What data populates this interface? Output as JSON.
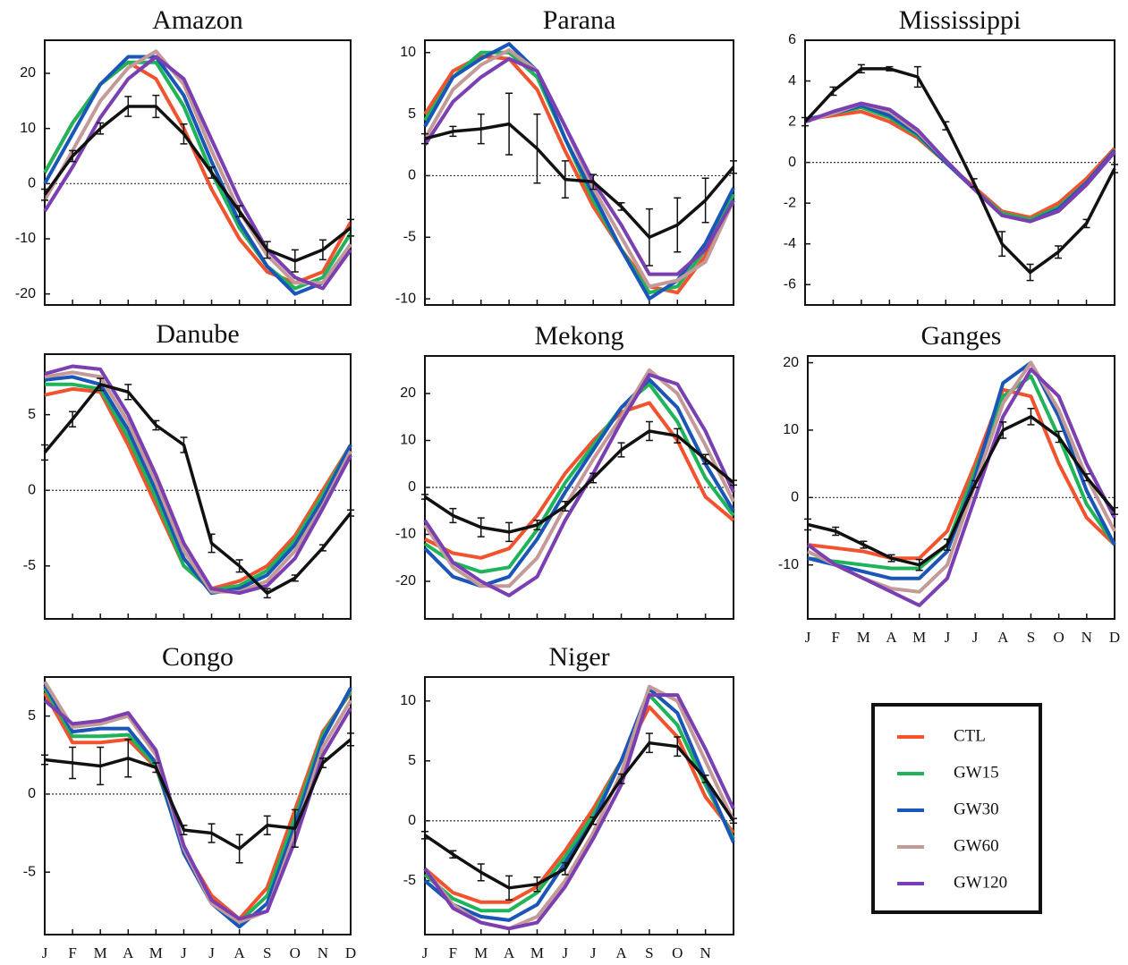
{
  "chart_data": [
    {
      "type": "line",
      "title": "Amazon",
      "categories": [
        null,
        null,
        null,
        null,
        null,
        null,
        null,
        null,
        null,
        null,
        null,
        null
      ],
      "ylim": [
        -22,
        26
      ],
      "yticks": [
        -20,
        -10,
        0,
        10,
        20
      ],
      "series": [
        {
          "values": [
            2,
            11,
            18,
            22,
            19,
            10,
            -1,
            -10,
            -16,
            -18,
            -16,
            -7
          ]
        },
        {
          "values": [
            2,
            11,
            18,
            22,
            22,
            14,
            2,
            -8,
            -15,
            -19,
            -17,
            -9
          ]
        },
        {
          "values": [
            0,
            9,
            18,
            23,
            23,
            16,
            4,
            -7,
            -15,
            -20,
            -18,
            -11
          ]
        },
        {
          "values": [
            -3,
            6,
            15,
            21,
            24,
            18,
            6,
            -5,
            -13,
            -18,
            -18,
            -11
          ]
        },
        {
          "values": [
            -5,
            3,
            12,
            19,
            23,
            19,
            8,
            -3,
            -12,
            -17,
            -19,
            -12
          ]
        }
      ],
      "observed": {
        "values": [
          -2,
          5,
          10,
          14,
          14,
          9,
          2,
          -5,
          -12,
          -14,
          -12,
          -8
        ],
        "errors": [
          1,
          1,
          1,
          1.8,
          2,
          1.8,
          1,
          1,
          1.5,
          2,
          1.8,
          1.5
        ]
      }
    },
    {
      "type": "line",
      "title": "Parana",
      "categories": [
        null,
        null,
        null,
        null,
        null,
        null,
        null,
        null,
        null,
        null,
        null,
        null
      ],
      "ylim": [
        -10.5,
        11
      ],
      "yticks": [
        -10,
        -5,
        0,
        5,
        10
      ],
      "series": [
        {
          "values": [
            5,
            8.5,
            9.7,
            9.5,
            7,
            2,
            -2.5,
            -6,
            -9,
            -9.5,
            -6.5,
            -2
          ]
        },
        {
          "values": [
            4.5,
            8,
            10,
            10,
            8,
            3,
            -2,
            -6,
            -9.5,
            -9,
            -6,
            -1.5
          ]
        },
        {
          "values": [
            4,
            8,
            9.5,
            10.7,
            8.5,
            3,
            -1.5,
            -6,
            -10,
            -8.5,
            -5.5,
            -1
          ]
        },
        {
          "values": [
            3,
            7,
            9,
            10.2,
            8.5,
            4,
            -1,
            -5,
            -9,
            -8.5,
            -7,
            -2
          ]
        },
        {
          "values": [
            2.5,
            6,
            8,
            9.5,
            8.5,
            4,
            -0.5,
            -4,
            -8,
            -8,
            -6,
            -2
          ]
        }
      ],
      "observed": {
        "values": [
          3,
          3.6,
          3.8,
          4.2,
          2.2,
          -0.3,
          -0.5,
          -2.5,
          -5,
          -4,
          -2,
          0.7
        ],
        "errors": [
          0.4,
          0.4,
          1.2,
          2.5,
          2.8,
          1.5,
          0.6,
          0.3,
          2.3,
          2.2,
          1.8,
          0.5
        ]
      }
    },
    {
      "type": "line",
      "title": "Mississippi",
      "categories": [
        null,
        null,
        null,
        null,
        null,
        null,
        null,
        null,
        null,
        null,
        null,
        null
      ],
      "ylim": [
        -7,
        6
      ],
      "yticks": [
        -6,
        -4,
        -2,
        0,
        2,
        4,
        6
      ],
      "series": [
        {
          "values": [
            2.1,
            2.3,
            2.5,
            2,
            1.2,
            0,
            -1.2,
            -2.4,
            -2.7,
            -2,
            -0.8,
            0.7
          ]
        },
        {
          "values": [
            2.1,
            2.4,
            2.7,
            2.2,
            1.3,
            0,
            -1.3,
            -2.5,
            -2.8,
            -2.2,
            -1,
            0.6
          ]
        },
        {
          "values": [
            2.1,
            2.4,
            2.8,
            2.3,
            1.4,
            0,
            -1.3,
            -2.6,
            -2.9,
            -2.3,
            -1,
            0.6
          ]
        },
        {
          "values": [
            2,
            2.4,
            2.9,
            2.5,
            1.5,
            0.1,
            -1.3,
            -2.6,
            -2.9,
            -2.4,
            -1.1,
            0.5
          ]
        },
        {
          "values": [
            2,
            2.5,
            2.9,
            2.6,
            1.6,
            0.1,
            -1.3,
            -2.6,
            -2.9,
            -2.4,
            -1.1,
            0.5
          ]
        }
      ],
      "observed": {
        "values": [
          2,
          3.5,
          4.6,
          4.6,
          4.2,
          1.8,
          -1,
          -4,
          -5.4,
          -4.4,
          -3,
          -0.3
        ],
        "errors": [
          0.2,
          0.2,
          0.2,
          0.1,
          0.5,
          0.2,
          0.2,
          0.6,
          0.4,
          0.3,
          0.2,
          0.2
        ]
      }
    },
    {
      "type": "line",
      "title": "Danube",
      "categories": [
        null,
        null,
        null,
        null,
        null,
        null,
        null,
        null,
        null,
        null,
        null,
        null
      ],
      "ylim": [
        -8.5,
        9
      ],
      "yticks": [
        -5,
        0,
        5
      ],
      "series": [
        {
          "values": [
            6.3,
            6.7,
            6.5,
            3,
            -1,
            -5,
            -6.5,
            -6,
            -5,
            -3,
            0,
            3
          ]
        },
        {
          "values": [
            7,
            7,
            6.7,
            3.5,
            -0.5,
            -5,
            -6.6,
            -6.3,
            -5.3,
            -3.3,
            -0.3,
            3
          ]
        },
        {
          "values": [
            7.3,
            7.5,
            7,
            4,
            0,
            -4.5,
            -6.8,
            -6.5,
            -5.6,
            -3.6,
            -0.6,
            3
          ]
        },
        {
          "values": [
            7.5,
            7.8,
            7.5,
            4.5,
            0.5,
            -4,
            -6.7,
            -6.7,
            -6,
            -4,
            -1,
            2.6
          ]
        },
        {
          "values": [
            7.7,
            8.2,
            8,
            5,
            1,
            -3.5,
            -6.5,
            -6.8,
            -6.3,
            -4.5,
            -1.2,
            2.3
          ]
        }
      ],
      "observed": {
        "values": [
          2.5,
          4.7,
          7,
          6.5,
          4.3,
          3,
          -3.5,
          -5,
          -6.8,
          -5.8,
          -3.8,
          -1.5
        ],
        "errors": [
          0.5,
          0.5,
          0.4,
          0.5,
          0.3,
          0.5,
          0.6,
          0.4,
          0.3,
          0.2,
          0.2,
          0.2
        ]
      }
    },
    {
      "type": "line",
      "title": "Mekong",
      "categories": [
        null,
        null,
        null,
        null,
        null,
        null,
        null,
        null,
        null,
        null,
        null,
        null
      ],
      "ylim": [
        -28,
        28
      ],
      "yticks": [
        -20,
        -10,
        0,
        10,
        20
      ],
      "series": [
        {
          "values": [
            -11,
            -14,
            -15,
            -13,
            -6,
            3,
            10,
            16,
            18,
            10,
            -2,
            -7
          ]
        },
        {
          "values": [
            -12,
            -16,
            -18,
            -17,
            -9,
            1,
            9,
            17,
            22,
            14,
            2,
            -6
          ]
        },
        {
          "values": [
            -13,
            -19,
            -21,
            -19,
            -11,
            -1,
            8,
            17,
            23,
            17,
            5,
            -5
          ]
        },
        {
          "values": [
            -8,
            -17,
            -21,
            -21,
            -15,
            -4,
            6,
            15,
            25,
            20,
            9,
            -3
          ]
        },
        {
          "values": [
            -7,
            -16,
            -20,
            -23,
            -19,
            -7,
            3,
            14,
            24,
            22,
            12,
            -1
          ]
        }
      ],
      "observed": {
        "values": [
          -2,
          -6,
          -8.5,
          -9.5,
          -8,
          -4,
          2,
          8,
          12,
          11,
          6,
          1
        ],
        "errors": [
          0.5,
          1.5,
          2,
          2,
          1,
          1,
          1,
          1.5,
          2,
          1.5,
          1,
          0.5
        ]
      }
    },
    {
      "type": "line",
      "title": "Ganges",
      "categories": [
        "J",
        "F",
        "M",
        "A",
        "M",
        "J",
        "J",
        "A",
        "S",
        "O",
        "N",
        "D"
      ],
      "ylim": [
        -18,
        21
      ],
      "yticks": [
        -10,
        0,
        10,
        20
      ],
      "series": [
        {
          "values": [
            -7,
            -7.5,
            -8,
            -9,
            -9,
            -5,
            5,
            16,
            15,
            5,
            -3,
            -7
          ]
        },
        {
          "values": [
            -9,
            -9.5,
            -10,
            -10.5,
            -10.5,
            -7,
            4,
            15,
            18,
            9,
            -1,
            -7
          ]
        },
        {
          "values": [
            -9,
            -10,
            -11,
            -12,
            -12,
            -8,
            3,
            17,
            20,
            12,
            1,
            -7
          ]
        },
        {
          "values": [
            -8,
            -10,
            -12,
            -13.5,
            -14,
            -10,
            2,
            14,
            20,
            13,
            3,
            -5
          ]
        },
        {
          "values": [
            -7,
            -10,
            -12,
            -14,
            -16,
            -12,
            0,
            12,
            19,
            15,
            5,
            -3
          ]
        }
      ],
      "observed": {
        "values": [
          -4,
          -5,
          -7,
          -9,
          -10,
          -7,
          2,
          10,
          12,
          9,
          3,
          -2
        ],
        "errors": [
          0.8,
          0.6,
          0.5,
          0.5,
          0.8,
          0.8,
          0.5,
          1.2,
          1.2,
          0.8,
          0.5,
          0.5
        ]
      }
    },
    {
      "type": "line",
      "title": "Congo",
      "categories": [
        "J",
        "F",
        "M",
        "A",
        "M",
        "J",
        "J",
        "A",
        "S",
        "O",
        "N",
        "D"
      ],
      "ylim": [
        -9,
        7.5
      ],
      "yticks": [
        -5,
        0,
        5
      ],
      "series": [
        {
          "values": [
            6.5,
            3.3,
            3.3,
            3.5,
            1.7,
            -3.5,
            -6.5,
            -8,
            -6,
            -1,
            4,
            6.5
          ]
        },
        {
          "values": [
            6.8,
            3.7,
            3.7,
            3.8,
            1.8,
            -3.7,
            -6.8,
            -8.2,
            -6.5,
            -1.5,
            3.8,
            6.6
          ]
        },
        {
          "values": [
            7,
            4,
            4.2,
            4.2,
            2,
            -3.8,
            -7,
            -8.5,
            -7,
            -2,
            3.5,
            6.8
          ]
        },
        {
          "values": [
            7.2,
            4.3,
            4.5,
            5,
            2.5,
            -3.5,
            -7,
            -8.2,
            -7.5,
            -2.5,
            3,
            6
          ]
        },
        {
          "values": [
            6,
            4.5,
            4.7,
            5.2,
            2.8,
            -3.3,
            -6.8,
            -8,
            -7.5,
            -3,
            2.5,
            5.5
          ]
        }
      ],
      "observed": {
        "values": [
          2.2,
          2,
          1.8,
          2.3,
          1.7,
          -2.3,
          -2.5,
          -3.5,
          -2,
          -2.2,
          2,
          3.5
        ],
        "errors": [
          0.3,
          1,
          1.2,
          1.2,
          0.3,
          0.3,
          0.6,
          0.9,
          0.6,
          1.2,
          0.3,
          0.4
        ]
      }
    },
    {
      "type": "line",
      "title": "Niger",
      "categories": [
        "J",
        "F",
        "M",
        "A",
        "M",
        "J",
        "J",
        "A",
        "S",
        "O",
        "N",
        null
      ],
      "ylim": [
        -9.5,
        12
      ],
      "yticks": [
        -5,
        0,
        5,
        10
      ],
      "series": [
        {
          "values": [
            -4,
            -6,
            -6.8,
            -6.8,
            -5.5,
            -2.5,
            1,
            5,
            9.5,
            7,
            2,
            -1
          ]
        },
        {
          "values": [
            -4.5,
            -6.5,
            -7.5,
            -7.5,
            -6,
            -3,
            0.5,
            5,
            10.5,
            8,
            3,
            -1.5
          ]
        },
        {
          "values": [
            -5,
            -7,
            -8,
            -8.3,
            -7,
            -3.5,
            0,
            5,
            11,
            9,
            3.5,
            -1.8
          ]
        },
        {
          "values": [
            -4,
            -7,
            -8.5,
            -9,
            -8,
            -5,
            -1,
            4,
            11.2,
            10,
            5,
            0
          ]
        },
        {
          "values": [
            -4,
            -7.3,
            -8.5,
            -9,
            -8.5,
            -5.5,
            -1.5,
            3,
            10.5,
            10.5,
            6,
            1
          ]
        }
      ],
      "observed": {
        "values": [
          -1.2,
          -2.8,
          -4.3,
          -5.6,
          -5.3,
          -4,
          0,
          3.5,
          6.5,
          6.2,
          3.5,
          0
        ],
        "errors": [
          0.3,
          0.3,
          0.7,
          1,
          0.6,
          0.5,
          0.3,
          0.4,
          0.8,
          0.8,
          0.3,
          0.2
        ]
      }
    }
  ],
  "legend": [
    {
      "name": "CTL",
      "color": "#f2522e"
    },
    {
      "name": "GW15",
      "color": "#1fb35a"
    },
    {
      "name": "GW30",
      "color": "#1a55b8"
    },
    {
      "name": "GW60",
      "color": "#c49a98"
    },
    {
      "name": "GW120",
      "color": "#7a3fb0"
    }
  ]
}
